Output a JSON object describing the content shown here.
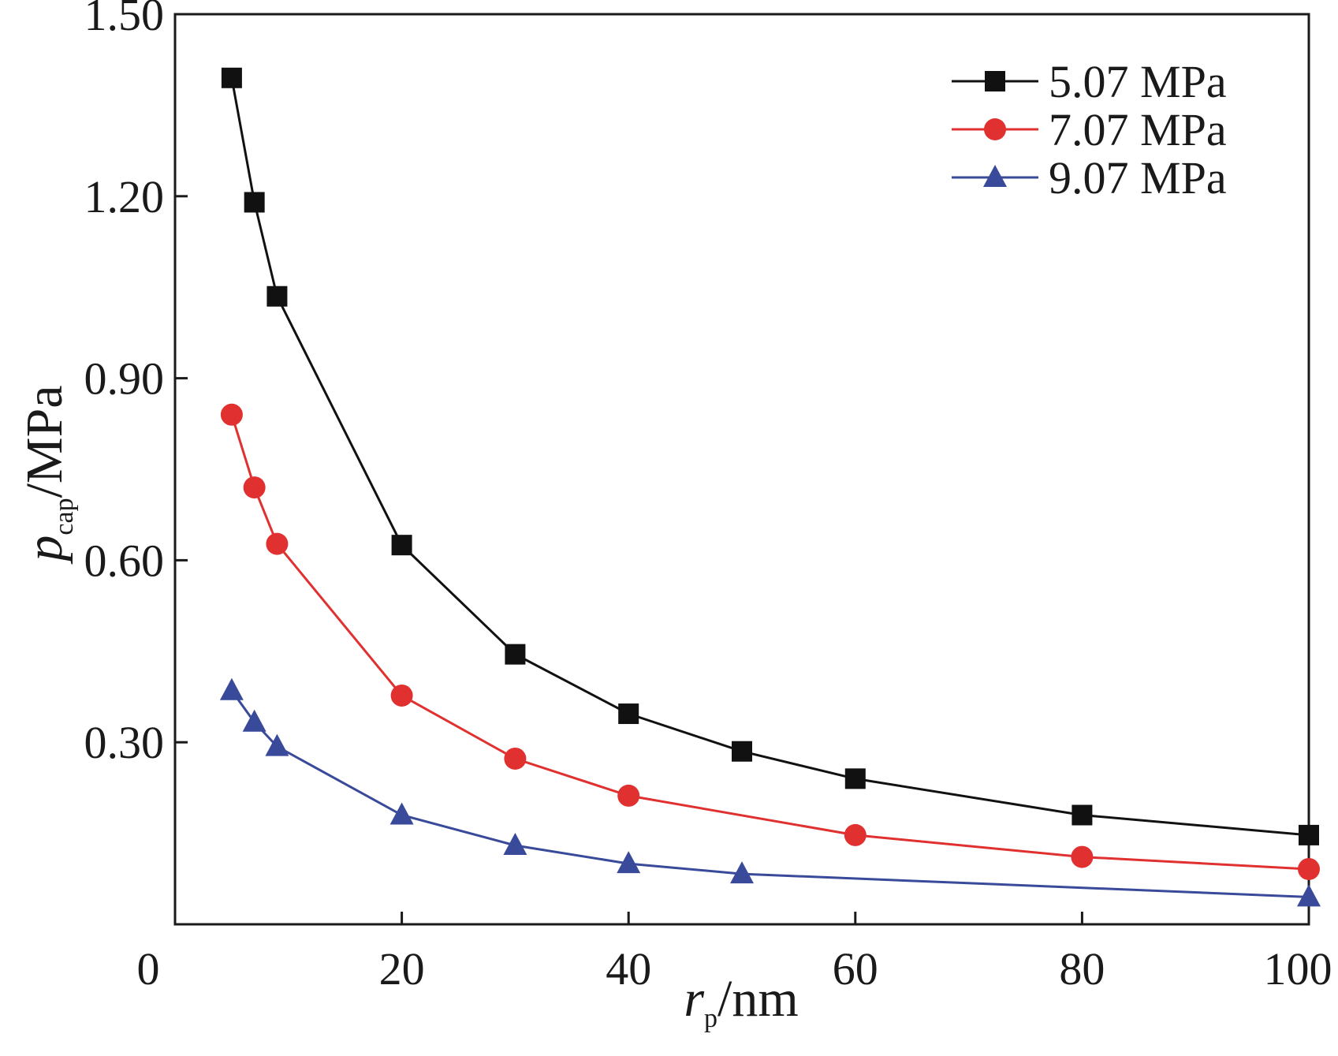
{
  "chart_data": {
    "type": "line",
    "title": "",
    "xlabel": {
      "main": "r",
      "sub": "p",
      "unit": "/nm"
    },
    "ylabel": {
      "main": "p",
      "sub": "cap",
      "unit": "/MPa"
    },
    "xlim": [
      0,
      100
    ],
    "ylim": [
      0.0,
      1.5
    ],
    "xticks": [
      0,
      20,
      40,
      60,
      80,
      100
    ],
    "xtick_labels": [
      "0",
      "20",
      "40",
      "60",
      "80",
      "100"
    ],
    "yticks": [
      0.3,
      0.6,
      0.9,
      1.2,
      1.5
    ],
    "ytick_labels": [
      "0.30",
      "0.60",
      "0.90",
      "1.20",
      "1.50"
    ],
    "grid": false,
    "legend_position": "top-right",
    "series": [
      {
        "name": "5.07 MPa",
        "color": "#111111",
        "marker": "square",
        "x": [
          5,
          7,
          9,
          20,
          30,
          40,
          50,
          60,
          80,
          100
        ],
        "y": [
          1.395,
          1.19,
          1.035,
          0.625,
          0.445,
          0.347,
          0.285,
          0.24,
          0.18,
          0.147
        ]
      },
      {
        "name": "7.07 MPa",
        "color": "#e03030",
        "marker": "circle",
        "x": [
          5,
          7,
          9,
          20,
          30,
          40,
          60,
          80,
          100
        ],
        "y": [
          0.84,
          0.72,
          0.627,
          0.377,
          0.273,
          0.212,
          0.147,
          0.111,
          0.091
        ]
      },
      {
        "name": "9.07 MPa",
        "color": "#3a4a9a",
        "marker": "triangle",
        "x": [
          5,
          7,
          9,
          20,
          30,
          40,
          50,
          100
        ],
        "y": [
          0.385,
          0.333,
          0.293,
          0.18,
          0.13,
          0.1,
          0.083,
          0.045
        ]
      }
    ]
  }
}
